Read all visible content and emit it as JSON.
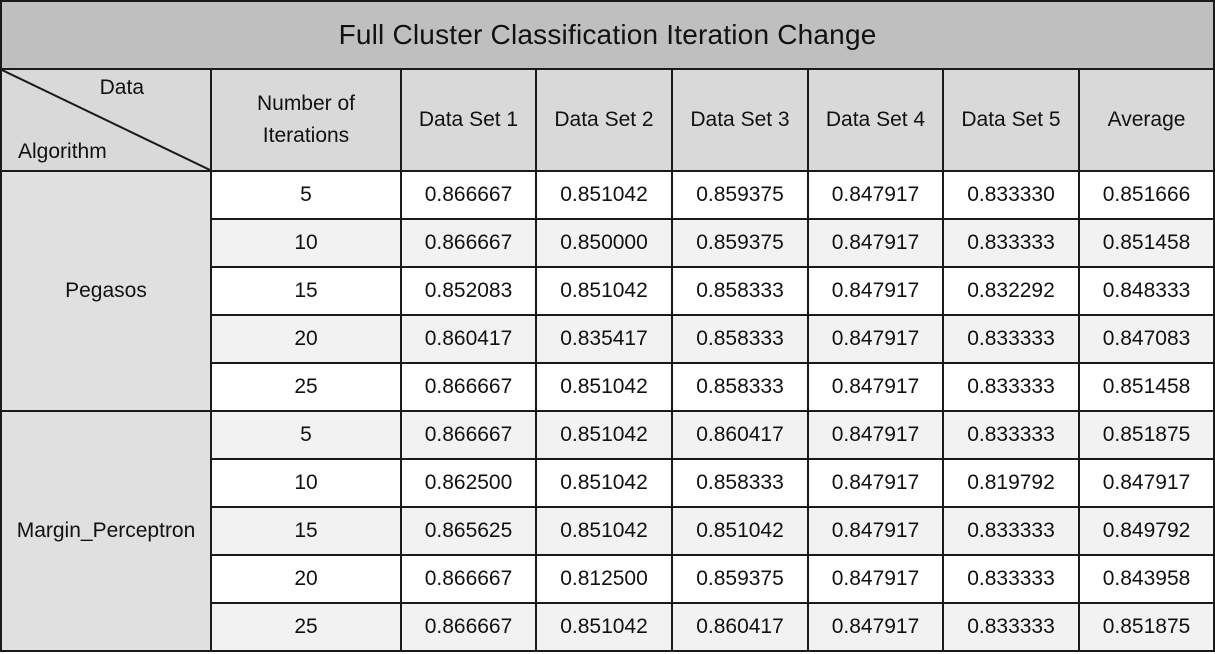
{
  "title": "Full Cluster Classification Iteration Change",
  "corner": {
    "top_label": "Data",
    "bottom_label": "Algorithm"
  },
  "headers": {
    "iterations_line1": "Number of",
    "iterations_line2": "Iterations",
    "datasets": [
      "Data Set 1",
      "Data Set 2",
      "Data Set 3",
      "Data Set 4",
      "Data Set 5"
    ],
    "average": "Average"
  },
  "groups": [
    {
      "algorithm": "Pegasos",
      "rows": [
        {
          "iterations": "5",
          "values": [
            "0.866667",
            "0.851042",
            "0.859375",
            "0.847917",
            "0.833330"
          ],
          "average": "0.851666"
        },
        {
          "iterations": "10",
          "values": [
            "0.866667",
            "0.850000",
            "0.859375",
            "0.847917",
            "0.833333"
          ],
          "average": "0.851458"
        },
        {
          "iterations": "15",
          "values": [
            "0.852083",
            "0.851042",
            "0.858333",
            "0.847917",
            "0.832292"
          ],
          "average": "0.848333"
        },
        {
          "iterations": "20",
          "values": [
            "0.860417",
            "0.835417",
            "0.858333",
            "0.847917",
            "0.833333"
          ],
          "average": "0.847083"
        },
        {
          "iterations": "25",
          "values": [
            "0.866667",
            "0.851042",
            "0.858333",
            "0.847917",
            "0.833333"
          ],
          "average": "0.851458"
        }
      ]
    },
    {
      "algorithm": "Margin_Perceptron",
      "rows": [
        {
          "iterations": "5",
          "values": [
            "0.866667",
            "0.851042",
            "0.860417",
            "0.847917",
            "0.833333"
          ],
          "average": "0.851875"
        },
        {
          "iterations": "10",
          "values": [
            "0.862500",
            "0.851042",
            "0.858333",
            "0.847917",
            "0.819792"
          ],
          "average": "0.847917"
        },
        {
          "iterations": "15",
          "values": [
            "0.865625",
            "0.851042",
            "0.851042",
            "0.847917",
            "0.833333"
          ],
          "average": "0.849792"
        },
        {
          "iterations": "20",
          "values": [
            "0.866667",
            "0.812500",
            "0.859375",
            "0.847917",
            "0.833333"
          ],
          "average": "0.843958"
        },
        {
          "iterations": "25",
          "values": [
            "0.866667",
            "0.851042",
            "0.860417",
            "0.847917",
            "0.833333"
          ],
          "average": "0.851875"
        }
      ]
    }
  ]
}
